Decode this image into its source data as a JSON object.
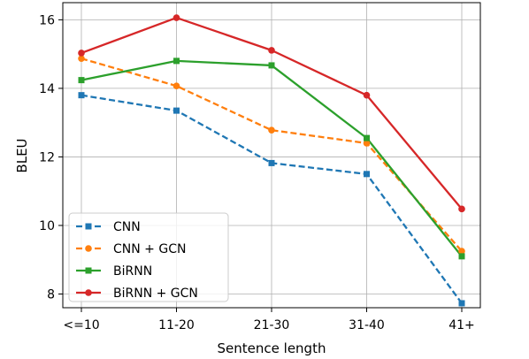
{
  "chart_data": {
    "type": "line",
    "title": "",
    "xlabel": "Sentence length",
    "ylabel": "BLEU",
    "categories": [
      "<=10",
      "11-20",
      "21-30",
      "31-40",
      "41+"
    ],
    "ylim": [
      7.6,
      16.5
    ],
    "yticks": [
      8,
      10,
      12,
      14,
      16
    ],
    "grid": true,
    "legend_position": "lower-left",
    "series": [
      {
        "name": "CNN",
        "values": [
          13.8,
          13.35,
          11.82,
          11.5,
          7.73
        ],
        "color": "#1f77b4",
        "dashed": true,
        "marker": "square"
      },
      {
        "name": "CNN + GCN",
        "values": [
          14.87,
          14.07,
          12.78,
          12.4,
          9.25
        ],
        "color": "#ff7f0e",
        "dashed": true,
        "marker": "circle"
      },
      {
        "name": "BiRNN",
        "values": [
          14.24,
          14.8,
          14.67,
          12.55,
          9.1
        ],
        "color": "#2ca02c",
        "dashed": false,
        "marker": "square"
      },
      {
        "name": "BiRNN + GCN",
        "values": [
          15.03,
          16.06,
          15.11,
          13.8,
          10.48
        ],
        "color": "#d62728",
        "dashed": false,
        "marker": "circle"
      }
    ]
  }
}
